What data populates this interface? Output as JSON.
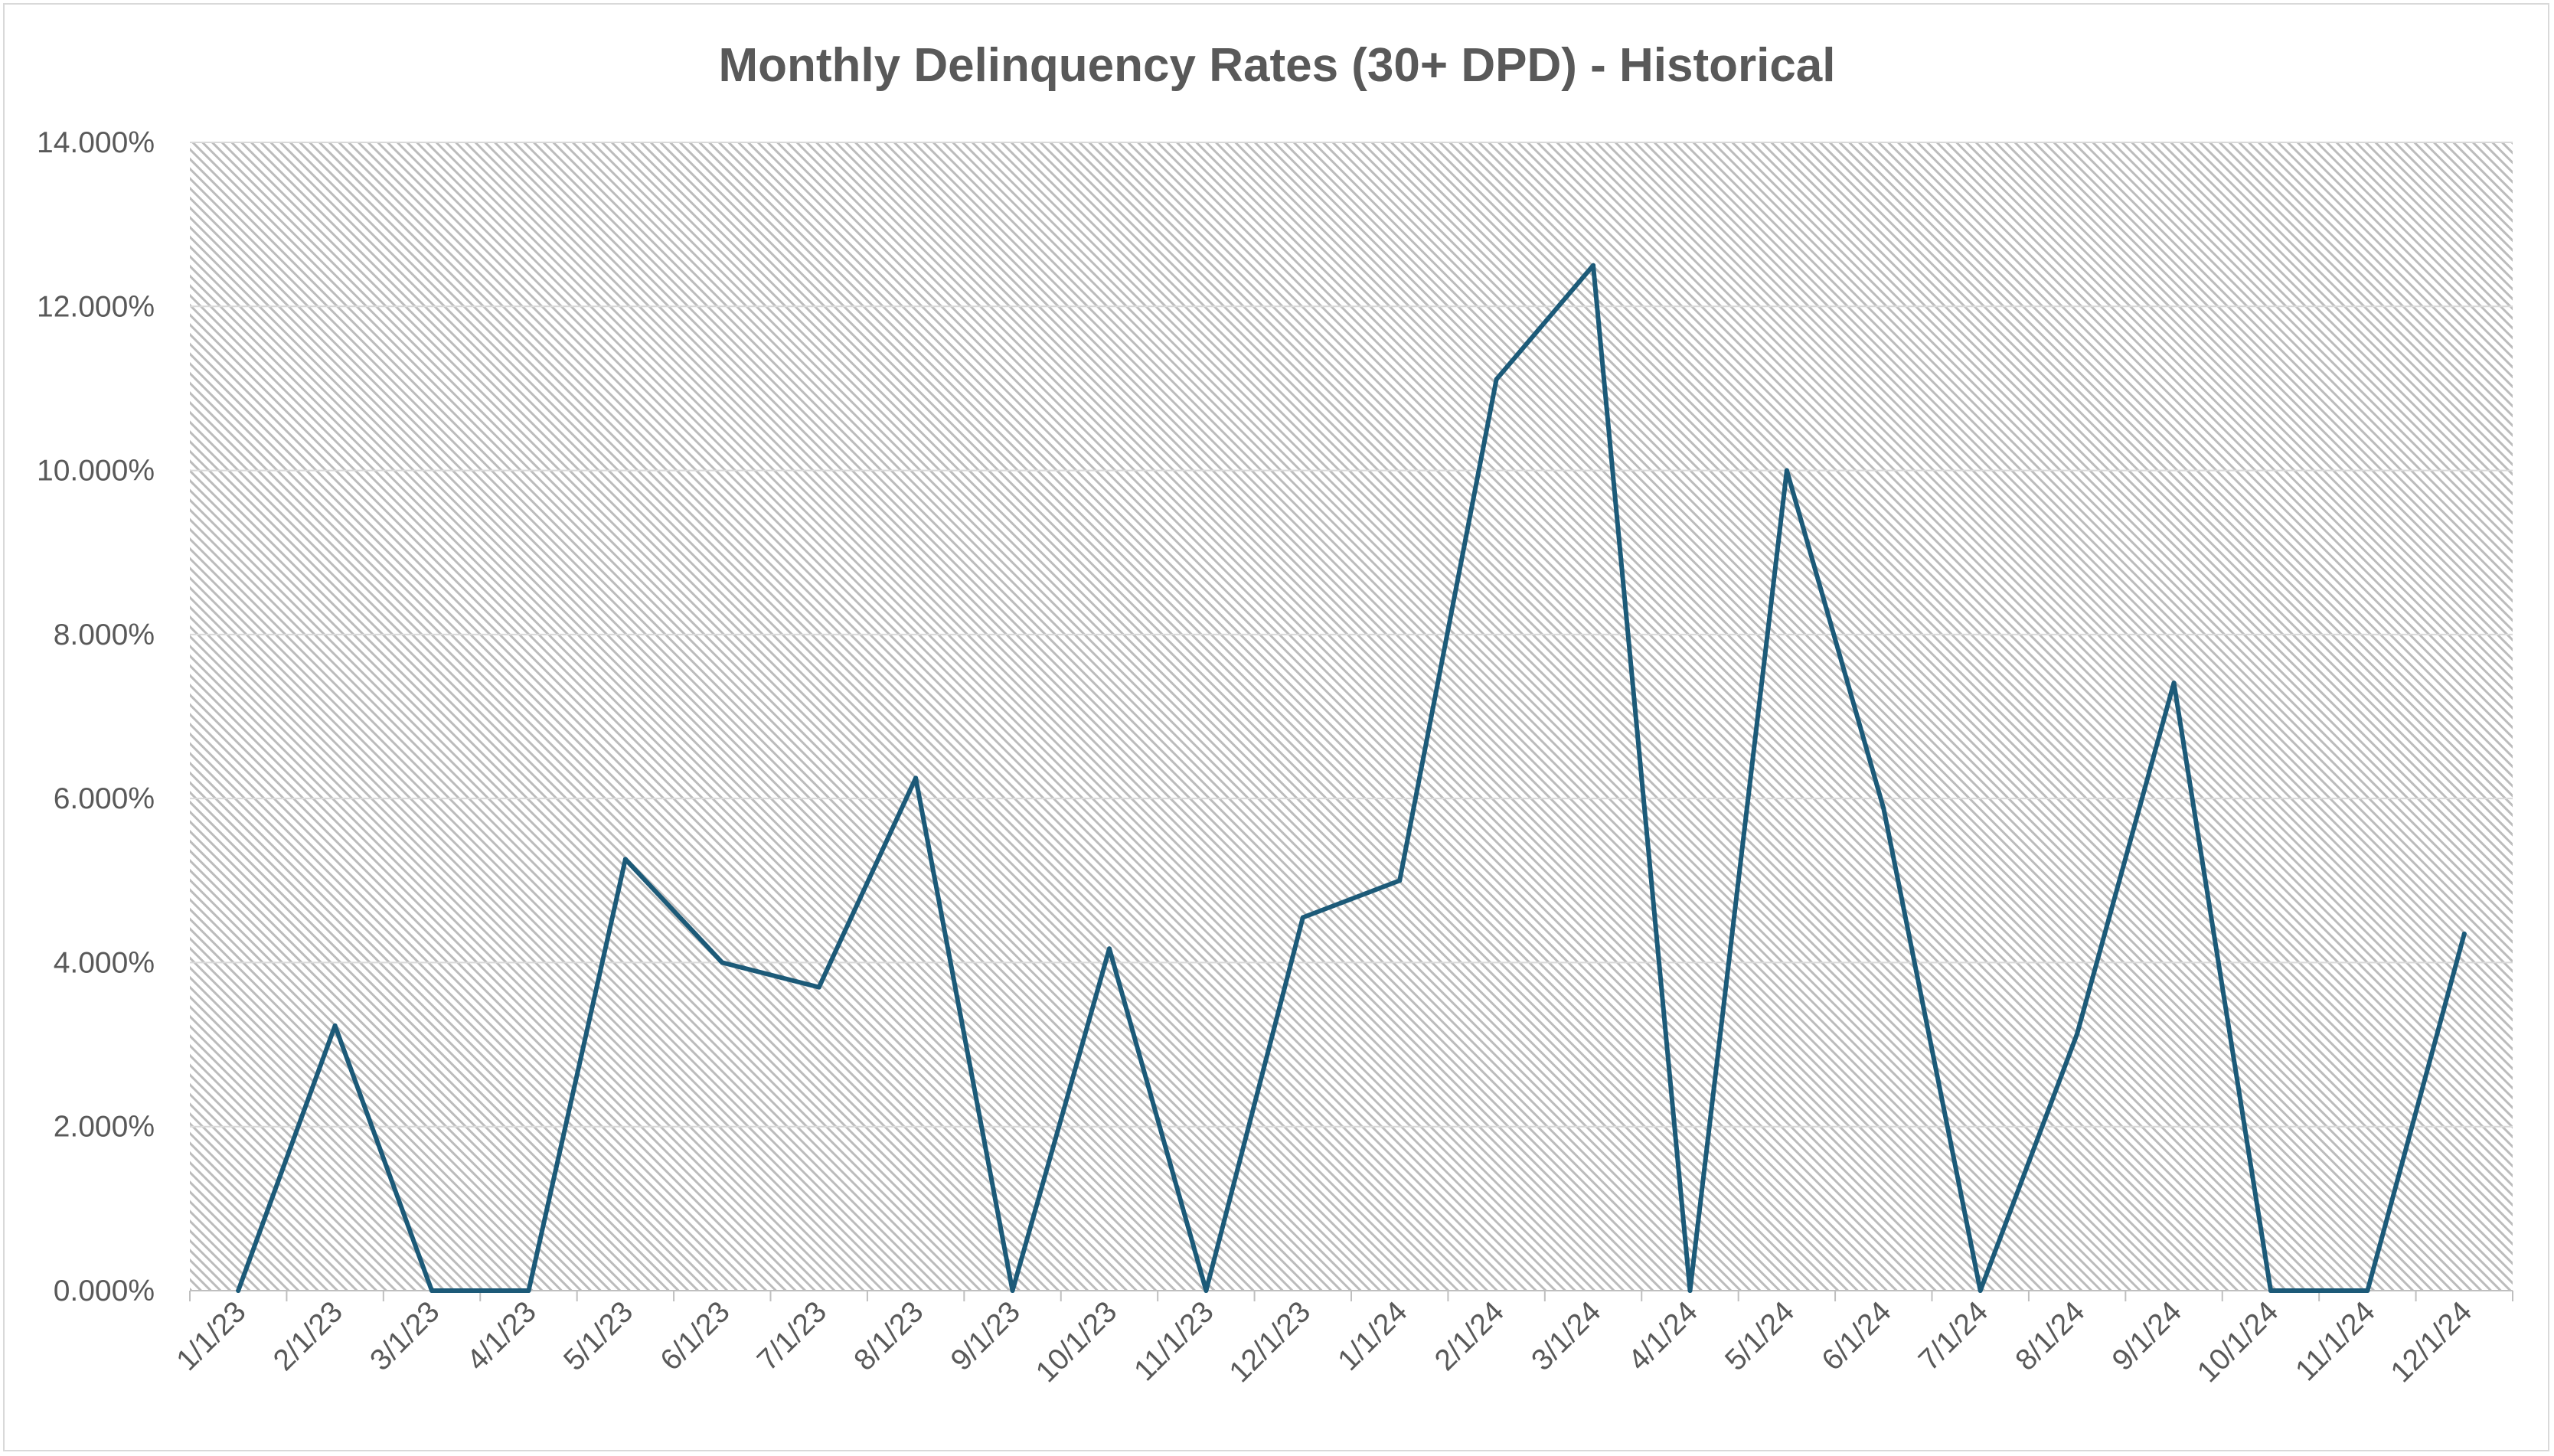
{
  "chart_data": {
    "type": "line",
    "title": "Monthly Delinquency Rates (30+ DPD) - Historical",
    "xlabel": "",
    "ylabel": "",
    "categories": [
      "1/1/23",
      "2/1/23",
      "3/1/23",
      "4/1/23",
      "5/1/23",
      "6/1/23",
      "7/1/23",
      "8/1/23",
      "9/1/23",
      "10/1/23",
      "11/1/23",
      "12/1/23",
      "1/1/24",
      "2/1/24",
      "3/1/24",
      "4/1/24",
      "5/1/24",
      "6/1/24",
      "7/1/24",
      "8/1/24",
      "9/1/24",
      "10/1/24",
      "11/1/24",
      "12/1/24"
    ],
    "series": [
      {
        "values": [
          0.0,
          3.23,
          0.0,
          0.0,
          5.26,
          4.0,
          3.7,
          6.25,
          0.0,
          4.17,
          0.0,
          4.55,
          5.0,
          11.11,
          12.5,
          0.0,
          10.0,
          5.88,
          0.0,
          3.13,
          7.41,
          0.0,
          0.0,
          4.35
        ],
        "color": "#1c5a78"
      }
    ],
    "ylim": [
      0,
      14
    ],
    "yticks": [
      0,
      2,
      4,
      6,
      8,
      10,
      12,
      14
    ],
    "ytick_labels": [
      "0.000%",
      "2.000%",
      "4.000%",
      "6.000%",
      "8.000%",
      "10.000%",
      "12.000%",
      "14.000%"
    ],
    "grid": true,
    "legend": "none",
    "colors": {
      "line": "#1c5a78",
      "gridline": "#d9d9d9",
      "axis": "#bfbfbf",
      "text": "#595959",
      "plot_pattern": "#bcbcbc"
    }
  }
}
